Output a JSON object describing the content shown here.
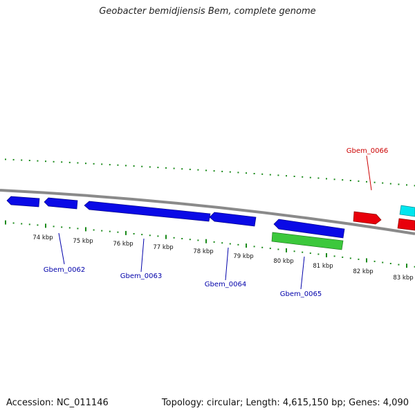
{
  "title": "Geobacter bemidjiensis Bem, complete genome",
  "accession": "Accession: NC_011146",
  "stats": "Topology: circular; Length: 4,615,150 bp; Genes: 4,090",
  "colors": {
    "backbone": "#808080",
    "ticks": "#1a8a1a",
    "forward_cds": "#e8000b",
    "reverse_cds": "#0000e6",
    "rna": "#3cc83c",
    "cyan_feature": "#00e5ee",
    "forward_label": "#cc0000",
    "reverse_label": "#0000aa"
  },
  "scale_labels": [
    "74 kbp",
    "75 kbp",
    "76 kbp",
    "77 kbp",
    "78 kbp",
    "79 kbp",
    "80 kbp",
    "81 kbp",
    "82 kbp",
    "83 kbp"
  ],
  "gene_labels": [
    {
      "text": "Gbem_0062",
      "strand": "reverse"
    },
    {
      "text": "Gbem_0063",
      "strand": "reverse"
    },
    {
      "text": "Gbem_0064",
      "strand": "reverse"
    },
    {
      "text": "Gbem_0065",
      "strand": "reverse"
    },
    {
      "text": "Gbem_0066",
      "strand": "forward"
    }
  ]
}
